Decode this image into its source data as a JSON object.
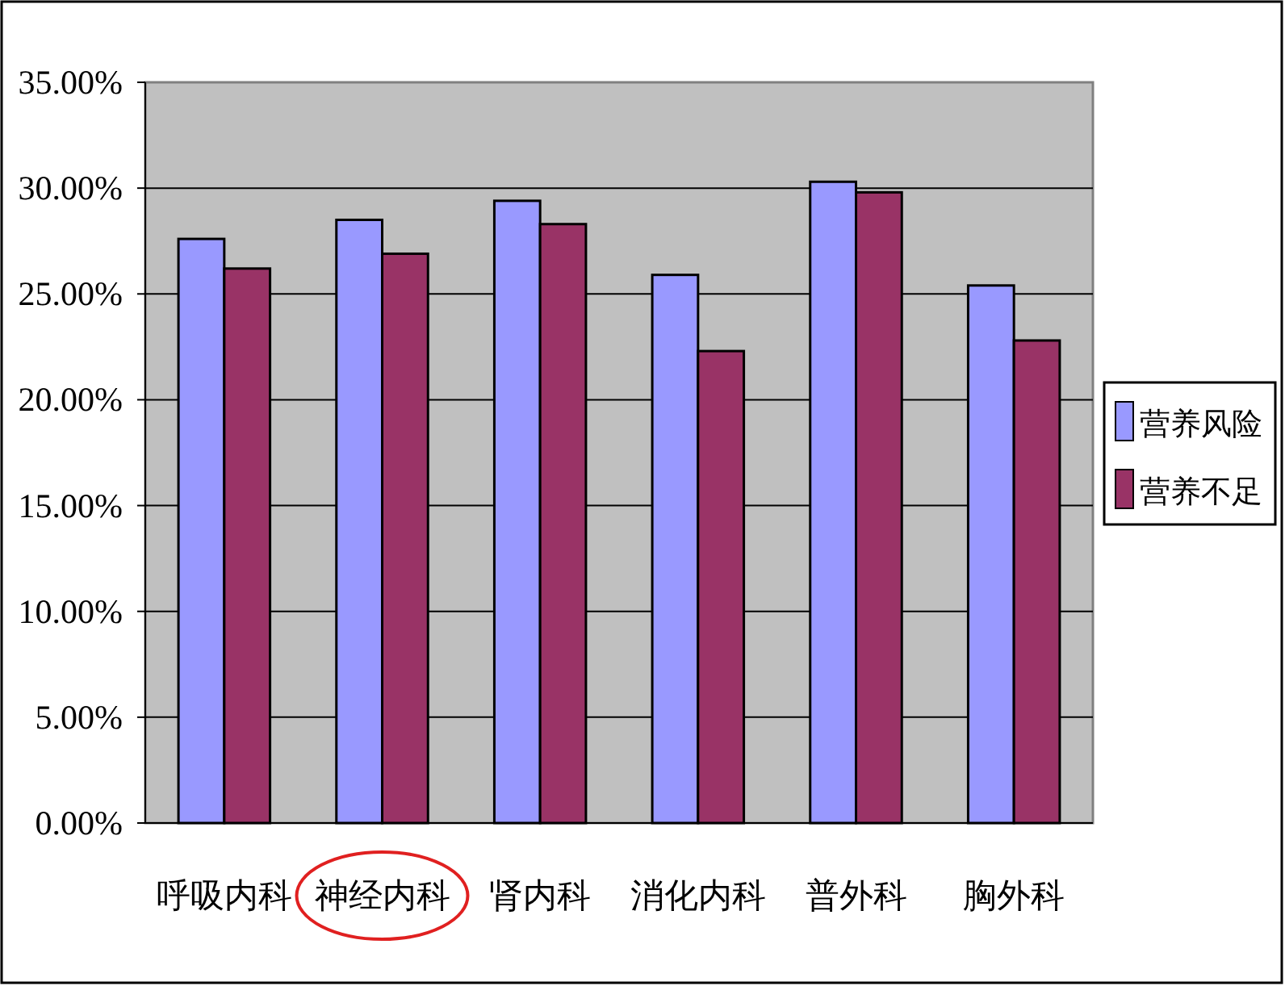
{
  "chart_data": {
    "type": "bar",
    "categories": [
      "呼吸内科",
      "神经内科",
      "肾内科",
      "消化内科",
      "普外科",
      "胸外科"
    ],
    "series": [
      {
        "name": "营养风险",
        "color": "#9999ff",
        "values": [
          27.6,
          28.5,
          29.4,
          25.9,
          30.3,
          25.4
        ]
      },
      {
        "name": "营养不足",
        "color": "#993366",
        "values": [
          26.2,
          26.9,
          28.3,
          22.3,
          29.8,
          22.8
        ]
      }
    ],
    "ylim": [
      0,
      35
    ],
    "yticks": [
      {
        "value": 0,
        "label": "0.00%"
      },
      {
        "value": 5,
        "label": "5.00%"
      },
      {
        "value": 10,
        "label": "10.00%"
      },
      {
        "value": 15,
        "label": "15.00%"
      },
      {
        "value": 20,
        "label": "20.00%"
      },
      {
        "value": 25,
        "label": "25.00%"
      },
      {
        "value": 30,
        "label": "30.00%"
      },
      {
        "value": 35,
        "label": "35.00%"
      }
    ],
    "grid": "y",
    "legend": "right"
  }
}
